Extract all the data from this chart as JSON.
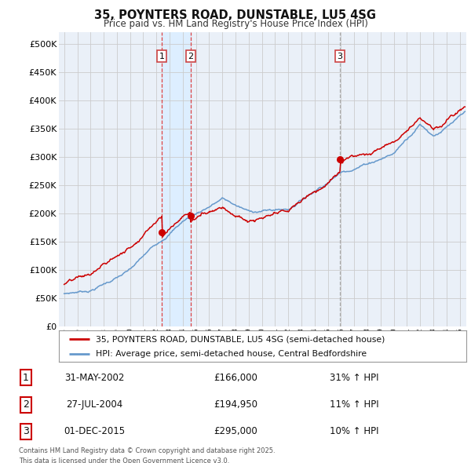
{
  "title_line1": "35, POYNTERS ROAD, DUNSTABLE, LU5 4SG",
  "title_line2": "Price paid vs. HM Land Registry's House Price Index (HPI)",
  "ytick_values": [
    0,
    50000,
    100000,
    150000,
    200000,
    250000,
    300000,
    350000,
    400000,
    450000,
    500000
  ],
  "xlim_start": 1994.6,
  "xlim_end": 2025.5,
  "purchase_years": [
    2002.42,
    2004.58,
    2015.92
  ],
  "purchase_prices": [
    166000,
    194950,
    295000
  ],
  "purchase_labels": [
    "1",
    "2",
    "3"
  ],
  "legend_label1": "35, POYNTERS ROAD, DUNSTABLE, LU5 4SG (semi-detached house)",
  "legend_label2": "HPI: Average price, semi-detached house, Central Bedfordshire",
  "footer_line1": "Contains HM Land Registry data © Crown copyright and database right 2025.",
  "footer_line2": "This data is licensed under the Open Government Licence v3.0.",
  "row_data": [
    [
      "1",
      "31-MAY-2002",
      "£166,000",
      "31% ↑ HPI"
    ],
    [
      "2",
      "27-JUL-2004",
      "£194,950",
      "11% ↑ HPI"
    ],
    [
      "3",
      "01-DEC-2015",
      "£295,000",
      "10% ↑ HPI"
    ]
  ],
  "line_color_red": "#cc0000",
  "line_color_blue": "#6699cc",
  "shade_color": "#ddeeff",
  "plot_bg_color": "#eaf0f8",
  "fig_bg_color": "#ffffff",
  "grid_color": "#cccccc",
  "vline_color": "#dd4444",
  "vline3_color": "#aaaaaa",
  "marker_color": "#cc0000",
  "label_box_color": "#cc4444"
}
